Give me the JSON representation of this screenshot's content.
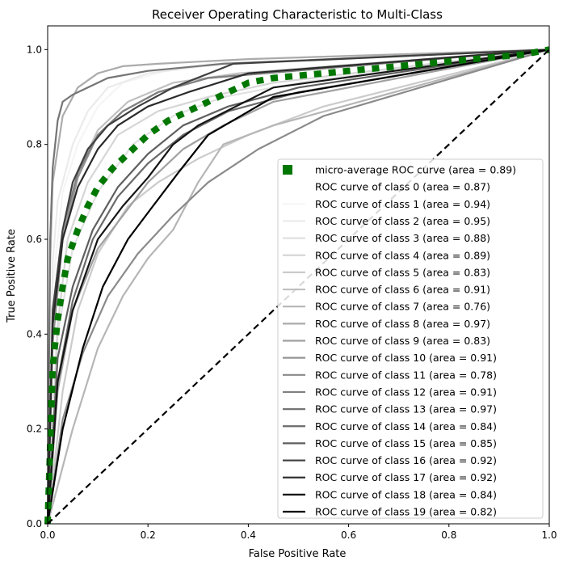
{
  "chart_data": {
    "type": "line",
    "title": "Receiver Operating Characteristic to Multi-Class",
    "xlabel": "False Positive Rate",
    "ylabel": "True Positive Rate",
    "xlim": [
      0.0,
      1.0
    ],
    "ylim": [
      0.0,
      1.05
    ],
    "x_ticks": [
      "0.0",
      "0.2",
      "0.4",
      "0.6",
      "0.8",
      "1.0"
    ],
    "y_ticks": [
      "0.0",
      "0.2",
      "0.4",
      "0.6",
      "0.8",
      "1.0"
    ],
    "legend_position": "lower right",
    "grid": false,
    "series": [
      {
        "name": "micro-average ROC curve (area = 0.89)",
        "color": "#007700",
        "style": "dotted-thick",
        "x": [
          0.0,
          0.01,
          0.02,
          0.03,
          0.04,
          0.06,
          0.08,
          0.1,
          0.13,
          0.16,
          0.2,
          0.24,
          0.28,
          0.32,
          0.36,
          0.4,
          0.45,
          0.5,
          0.55,
          0.6,
          0.65,
          0.7,
          0.75,
          0.8,
          0.85,
          0.9,
          0.95,
          1.0
        ],
        "y": [
          0.0,
          0.33,
          0.43,
          0.5,
          0.56,
          0.62,
          0.67,
          0.71,
          0.75,
          0.78,
          0.82,
          0.85,
          0.87,
          0.89,
          0.91,
          0.93,
          0.94,
          0.945,
          0.95,
          0.955,
          0.96,
          0.965,
          0.97,
          0.975,
          0.98,
          0.985,
          0.99,
          1.0
        ]
      },
      {
        "name": "ROC curve of class 0 (area = 0.87)",
        "color": "#ffffff",
        "x": [
          0.0,
          0.02,
          0.05,
          0.1,
          0.2,
          0.3,
          0.45,
          0.6,
          1.0
        ],
        "y": [
          0.0,
          0.35,
          0.55,
          0.68,
          0.8,
          0.88,
          0.93,
          0.96,
          1.0
        ]
      },
      {
        "name": "ROC curve of class 1 (area = 0.94)",
        "color": "#f5f5f5",
        "x": [
          0.0,
          0.01,
          0.03,
          0.06,
          0.1,
          0.15,
          0.25,
          0.4,
          1.0
        ],
        "y": [
          0.0,
          0.5,
          0.7,
          0.8,
          0.88,
          0.93,
          0.96,
          0.98,
          1.0
        ]
      },
      {
        "name": "ROC curve of class 2 (area = 0.95)",
        "color": "#ebebeb",
        "x": [
          0.0,
          0.01,
          0.02,
          0.05,
          0.08,
          0.12,
          0.2,
          0.35,
          1.0
        ],
        "y": [
          0.0,
          0.55,
          0.68,
          0.8,
          0.87,
          0.92,
          0.95,
          0.97,
          1.0
        ]
      },
      {
        "name": "ROC curve of class 3 (area = 0.88)",
        "color": "#e1e1e1",
        "x": [
          0.0,
          0.02,
          0.05,
          0.1,
          0.17,
          0.25,
          0.35,
          0.5,
          1.0
        ],
        "y": [
          0.0,
          0.4,
          0.58,
          0.7,
          0.8,
          0.86,
          0.9,
          0.93,
          1.0
        ]
      },
      {
        "name": "ROC curve of class 4 (area = 0.89)",
        "color": "#d6d6d6",
        "x": [
          0.0,
          0.02,
          0.04,
          0.08,
          0.14,
          0.22,
          0.32,
          0.45,
          1.0
        ],
        "y": [
          0.0,
          0.42,
          0.6,
          0.72,
          0.82,
          0.87,
          0.9,
          0.93,
          1.0
        ]
      },
      {
        "name": "ROC curve of class 5 (area = 0.83)",
        "color": "#cbcbcb",
        "x": [
          0.0,
          0.03,
          0.06,
          0.1,
          0.16,
          0.22,
          0.3,
          0.4,
          0.55,
          1.0
        ],
        "y": [
          0.0,
          0.28,
          0.45,
          0.57,
          0.67,
          0.72,
          0.77,
          0.82,
          0.88,
          1.0
        ]
      },
      {
        "name": "ROC curve of class 6 (area = 0.91)",
        "color": "#c0c0c0",
        "x": [
          0.0,
          0.01,
          0.03,
          0.06,
          0.1,
          0.16,
          0.25,
          0.38,
          1.0
        ],
        "y": [
          0.0,
          0.4,
          0.6,
          0.74,
          0.83,
          0.89,
          0.93,
          0.95,
          1.0
        ]
      },
      {
        "name": "ROC curve of class 7 (area = 0.76)",
        "color": "#b6b6b6",
        "x": [
          0.0,
          0.05,
          0.1,
          0.15,
          0.2,
          0.25,
          0.3,
          0.35,
          0.45,
          1.0
        ],
        "y": [
          0.0,
          0.2,
          0.37,
          0.48,
          0.56,
          0.62,
          0.72,
          0.8,
          0.84,
          1.0
        ]
      },
      {
        "name": "ROC curve of class 8 (area = 0.97)",
        "color": "#ababab",
        "x": [
          0.0,
          0.005,
          0.01,
          0.03,
          0.06,
          0.1,
          0.15,
          0.22,
          0.4,
          1.0
        ],
        "y": [
          0.0,
          0.55,
          0.72,
          0.86,
          0.92,
          0.95,
          0.965,
          0.97,
          0.98,
          1.0
        ]
      },
      {
        "name": "ROC curve of class 9 (area = 0.83)",
        "color": "#a0a0a0",
        "x": [
          0.0,
          0.02,
          0.05,
          0.1,
          0.15,
          0.2,
          0.27,
          0.35,
          0.45,
          1.0
        ],
        "y": [
          0.0,
          0.28,
          0.45,
          0.58,
          0.65,
          0.72,
          0.79,
          0.84,
          0.89,
          1.0
        ]
      },
      {
        "name": "ROC curve of class 10 (area = 0.91)",
        "color": "#959595",
        "x": [
          0.0,
          0.01,
          0.03,
          0.06,
          0.1,
          0.15,
          0.22,
          0.32,
          1.0
        ],
        "y": [
          0.0,
          0.38,
          0.6,
          0.73,
          0.82,
          0.87,
          0.91,
          0.94,
          1.0
        ]
      },
      {
        "name": "ROC curve of class 11 (area = 0.78)",
        "color": "#8a8a8a",
        "x": [
          0.0,
          0.03,
          0.07,
          0.12,
          0.18,
          0.25,
          0.32,
          0.42,
          0.55,
          1.0
        ],
        "y": [
          0.0,
          0.22,
          0.36,
          0.48,
          0.57,
          0.65,
          0.72,
          0.79,
          0.86,
          1.0
        ]
      },
      {
        "name": "ROC curve of class 12 (area = 0.91)",
        "color": "#808080",
        "x": [
          0.0,
          0.01,
          0.03,
          0.06,
          0.1,
          0.15,
          0.22,
          0.32,
          1.0
        ],
        "y": [
          0.0,
          0.42,
          0.62,
          0.74,
          0.82,
          0.87,
          0.91,
          0.94,
          1.0
        ]
      },
      {
        "name": "ROC curve of class 13 (area = 0.97)",
        "color": "#757575",
        "x": [
          0.0,
          0.005,
          0.01,
          0.02,
          0.03,
          0.05,
          0.08,
          0.12,
          0.2,
          0.35,
          1.0
        ],
        "y": [
          0.0,
          0.6,
          0.75,
          0.85,
          0.89,
          0.905,
          0.92,
          0.94,
          0.955,
          0.97,
          1.0
        ]
      },
      {
        "name": "ROC curve of class 14 (area = 0.84)",
        "color": "#6a6a6a",
        "x": [
          0.0,
          0.02,
          0.05,
          0.09,
          0.14,
          0.2,
          0.27,
          0.36,
          0.5,
          1.0
        ],
        "y": [
          0.0,
          0.3,
          0.47,
          0.6,
          0.69,
          0.76,
          0.82,
          0.87,
          0.91,
          1.0
        ]
      },
      {
        "name": "ROC curve of class 15 (area = 0.85)",
        "color": "#5f5f5f",
        "x": [
          0.0,
          0.02,
          0.05,
          0.09,
          0.14,
          0.2,
          0.27,
          0.36,
          0.5,
          1.0
        ],
        "y": [
          0.0,
          0.35,
          0.5,
          0.62,
          0.71,
          0.78,
          0.84,
          0.88,
          0.92,
          1.0
        ]
      },
      {
        "name": "ROC curve of class 16 (area = 0.92)",
        "color": "#404040",
        "x": [
          0.0,
          0.01,
          0.03,
          0.05,
          0.08,
          0.12,
          0.18,
          0.25,
          0.37,
          1.0
        ],
        "y": [
          0.0,
          0.45,
          0.62,
          0.72,
          0.79,
          0.84,
          0.88,
          0.92,
          0.97,
          1.0
        ]
      },
      {
        "name": "ROC curve of class 17 (area = 0.92)",
        "color": "#2a2a2a",
        "x": [
          0.0,
          0.01,
          0.03,
          0.06,
          0.1,
          0.14,
          0.2,
          0.28,
          0.4,
          1.0
        ],
        "y": [
          0.0,
          0.42,
          0.6,
          0.71,
          0.79,
          0.84,
          0.88,
          0.91,
          0.95,
          1.0
        ]
      },
      {
        "name": "ROC curve of class 18 (area = 0.84)",
        "color": "#151515",
        "x": [
          0.0,
          0.02,
          0.05,
          0.1,
          0.15,
          0.2,
          0.25,
          0.3,
          0.45,
          1.0
        ],
        "y": [
          0.0,
          0.3,
          0.45,
          0.6,
          0.67,
          0.73,
          0.8,
          0.84,
          0.92,
          1.0
        ]
      },
      {
        "name": "ROC curve of class 19 (area = 0.82)",
        "color": "#000000",
        "x": [
          0.0,
          0.03,
          0.07,
          0.11,
          0.16,
          0.21,
          0.26,
          0.32,
          0.45,
          1.0
        ],
        "y": [
          0.0,
          0.2,
          0.37,
          0.5,
          0.6,
          0.67,
          0.74,
          0.82,
          0.9,
          1.0
        ]
      }
    ],
    "reference_line": {
      "x": [
        0,
        1
      ],
      "y": [
        0,
        1
      ],
      "color": "#000000",
      "style": "dashed"
    }
  }
}
